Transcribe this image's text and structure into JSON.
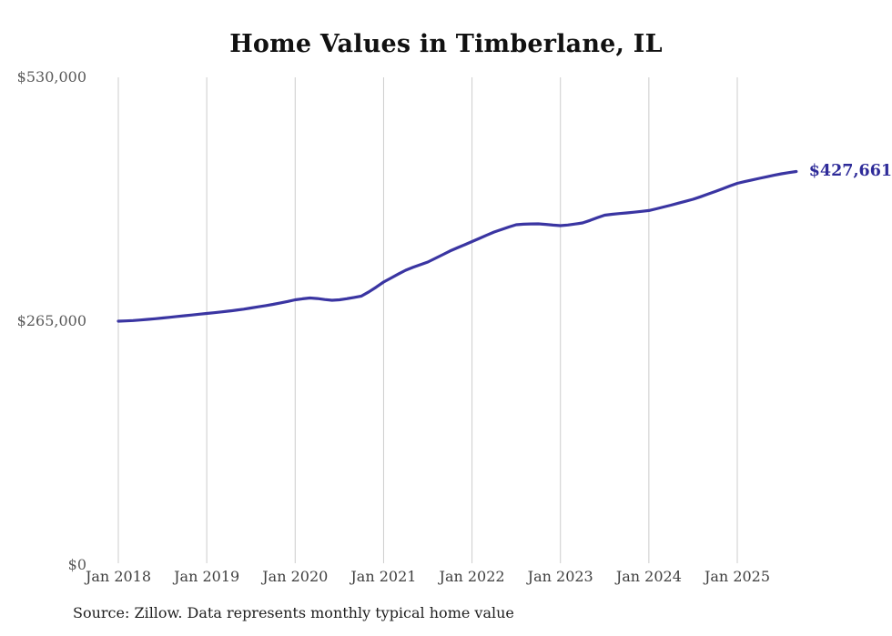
{
  "title": "Home Values in Timberlane, IL",
  "end_label": "$427,661",
  "source_note": "Source: Zillow. Data represents monthly typical home value",
  "y_axis": {
    "tick_labels": [
      "$530,000",
      "$265,000",
      "$0"
    ],
    "tick_values": [
      530000,
      265000,
      0
    ]
  },
  "x_axis": {
    "tick_labels": [
      "Jan 2018",
      "Jan 2019",
      "Jan 2020",
      "Jan 2021",
      "Jan 2022",
      "Jan 2023",
      "Jan 2024",
      "Jan 2025"
    ]
  },
  "colors": {
    "background": "#ffffff",
    "line": "#3a35a2",
    "end_label": "#2e2b99",
    "grid": "#cccccc",
    "title": "#111111",
    "y_tick": "#595959",
    "x_tick": "#3f3f3f",
    "source": "#1f1f1f"
  },
  "chart_data": {
    "type": "line",
    "title": "Home Values in Timberlane, IL",
    "series_name": "Monthly typical home value (Zillow)",
    "ylim": [
      0,
      530000
    ],
    "grid": "vertical-only",
    "legend": "none",
    "x_tick_month_indices": [
      0,
      12,
      24,
      36,
      48,
      60,
      72,
      84
    ],
    "last_value": 427661,
    "last_point_label": "$427,661",
    "x": [
      "Jan 2018",
      "Feb 2018",
      "Mar 2018",
      "Apr 2018",
      "May 2018",
      "Jun 2018",
      "Jul 2018",
      "Aug 2018",
      "Sep 2018",
      "Oct 2018",
      "Nov 2018",
      "Dec 2018",
      "Jan 2019",
      "Feb 2019",
      "Mar 2019",
      "Apr 2019",
      "May 2019",
      "Jun 2019",
      "Jul 2019",
      "Aug 2019",
      "Sep 2019",
      "Oct 2019",
      "Nov 2019",
      "Dec 2019",
      "Jan 2020",
      "Feb 2020",
      "Mar 2020",
      "Apr 2020",
      "May 2020",
      "Jun 2020",
      "Jul 2020",
      "Aug 2020",
      "Sep 2020",
      "Oct 2020",
      "Nov 2020",
      "Dec 2020",
      "Jan 2021",
      "Feb 2021",
      "Mar 2021",
      "Apr 2021",
      "May 2021",
      "Jun 2021",
      "Jul 2021",
      "Aug 2021",
      "Sep 2021",
      "Oct 2021",
      "Nov 2021",
      "Dec 2021",
      "Jan 2022",
      "Feb 2022",
      "Mar 2022",
      "Apr 2022",
      "May 2022",
      "Jun 2022",
      "Jul 2022",
      "Aug 2022",
      "Sep 2022",
      "Oct 2022",
      "Nov 2022",
      "Dec 2022",
      "Jan 2023",
      "Feb 2023",
      "Mar 2023",
      "Apr 2023",
      "May 2023",
      "Jun 2023",
      "Jul 2023",
      "Aug 2023",
      "Sep 2023",
      "Oct 2023",
      "Nov 2023",
      "Dec 2023",
      "Jan 2024",
      "Feb 2024",
      "Mar 2024",
      "Apr 2024",
      "May 2024",
      "Jun 2024",
      "Jul 2024",
      "Aug 2024",
      "Sep 2024",
      "Oct 2024",
      "Nov 2024",
      "Dec 2024",
      "Jan 2025",
      "Feb 2025",
      "Mar 2025",
      "Apr 2025",
      "May 2025",
      "Jun 2025",
      "Jul 2025",
      "Aug 2025",
      "Sep 2025"
    ],
    "values": [
      265000,
      265300,
      265700,
      266300,
      267000,
      267700,
      268500,
      269300,
      270100,
      270900,
      271700,
      272600,
      273400,
      274200,
      275100,
      276000,
      277000,
      278100,
      279300,
      280600,
      281900,
      283300,
      284900,
      286500,
      288200,
      289300,
      290200,
      289600,
      288500,
      287700,
      288200,
      289400,
      290800,
      292300,
      296800,
      302000,
      307500,
      311900,
      316200,
      320400,
      323500,
      326400,
      329300,
      333200,
      337200,
      341200,
      344700,
      348100,
      351500,
      355000,
      358500,
      361900,
      364700,
      367300,
      369800,
      370400,
      370700,
      370800,
      370200,
      369400,
      368800,
      369500,
      370600,
      371800,
      374500,
      377400,
      380200,
      381200,
      382000,
      382700,
      383500,
      384300,
      385200,
      387100,
      389100,
      391100,
      393200,
      395300,
      397500,
      400200,
      403000,
      405900,
      408900,
      411900,
      414800,
      416700,
      418500,
      420200,
      421900,
      423600,
      425200,
      426500,
      427661
    ]
  }
}
